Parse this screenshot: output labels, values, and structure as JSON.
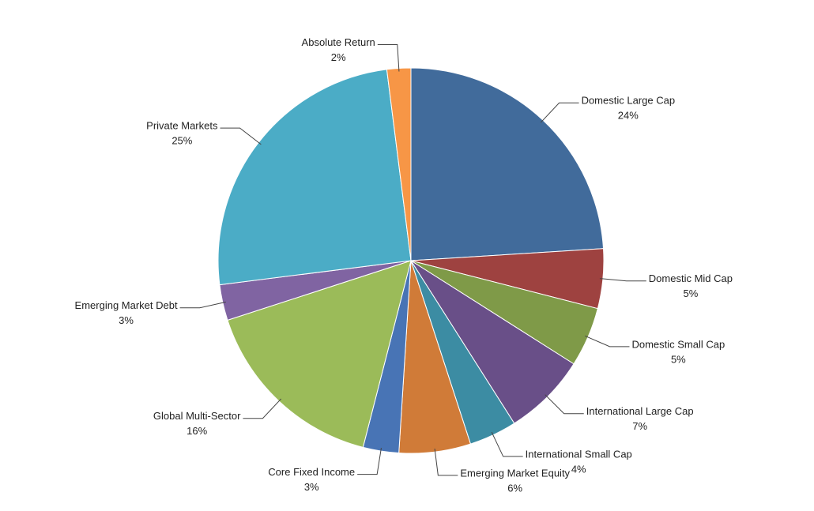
{
  "chart_data": {
    "type": "pie",
    "categories": [
      "Domestic Large Cap",
      "Domestic Mid Cap",
      "Domestic Small Cap",
      "International Large Cap",
      "International Small Cap",
      "Emerging Market Equity",
      "Core Fixed Income",
      "Global Multi-Sector",
      "Emerging Market Debt",
      "Private Markets",
      "Absolute Return"
    ],
    "values": [
      24,
      5,
      5,
      7,
      4,
      6,
      3,
      16,
      3,
      25,
      2
    ],
    "value_labels": [
      "24%",
      "5%",
      "5%",
      "7%",
      "4%",
      "6%",
      "3%",
      "16%",
      "3%",
      "25%",
      "2%"
    ],
    "colors": [
      "#416b9b",
      "#9e4240",
      "#7f9a48",
      "#694f88",
      "#3c8ca3",
      "#d07b38",
      "#4874b5",
      "#9bbb59",
      "#8064a2",
      "#4bacc6",
      "#f79646"
    ]
  }
}
